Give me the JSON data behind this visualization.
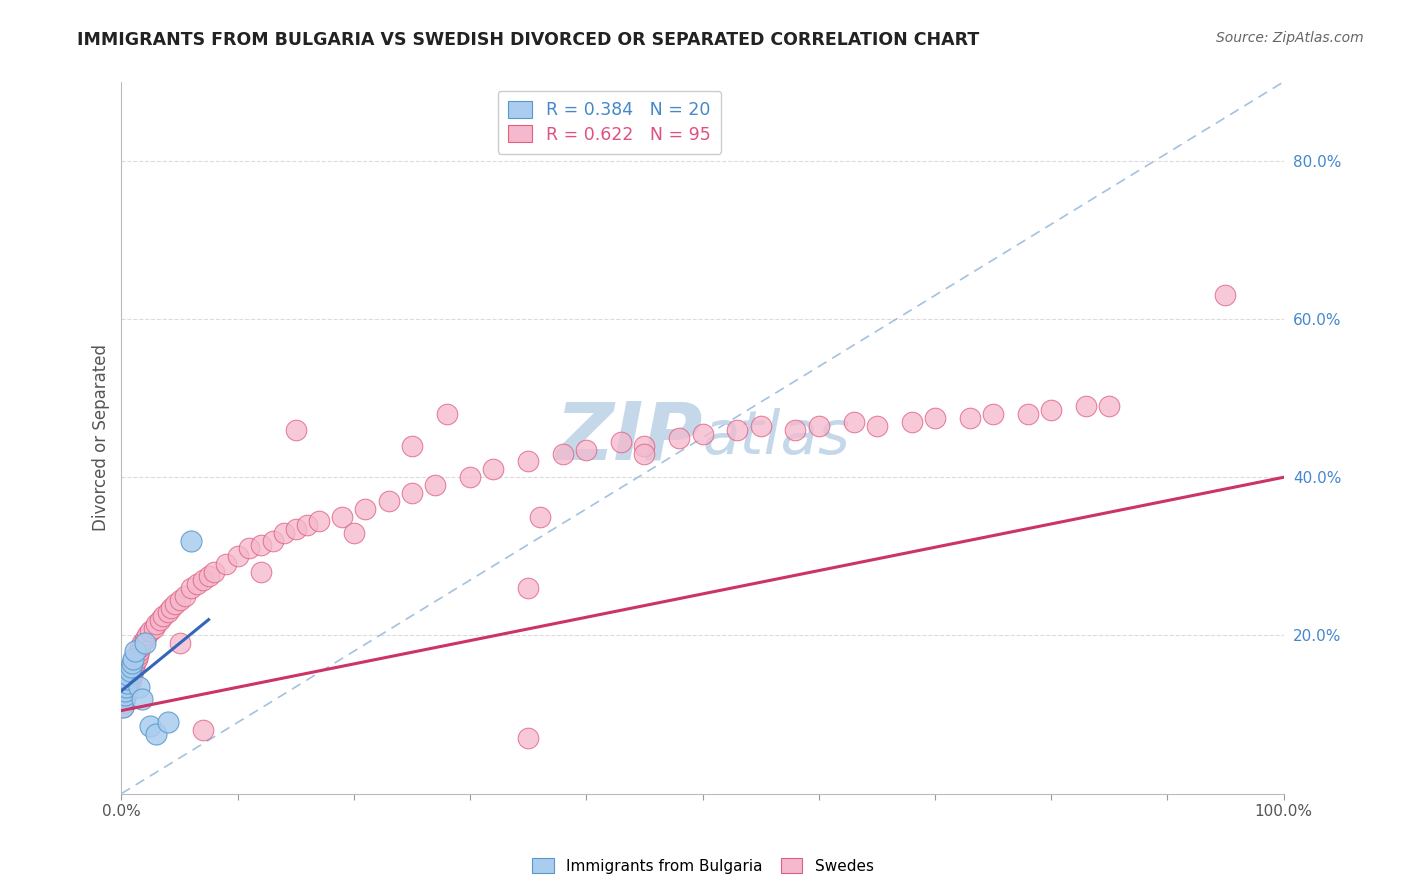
{
  "title": "IMMIGRANTS FROM BULGARIA VS SWEDISH DIVORCED OR SEPARATED CORRELATION CHART",
  "source_text": "Source: ZipAtlas.com",
  "ylabel": "Divorced or Separated",
  "xlim": [
    0.0,
    1.0
  ],
  "ylim": [
    0.0,
    0.9
  ],
  "x_ticks": [
    0.0,
    0.1,
    0.2,
    0.3,
    0.4,
    0.5,
    0.6,
    0.7,
    0.8,
    0.9,
    1.0
  ],
  "y_tick_right_values": [
    0.2,
    0.4,
    0.6,
    0.8
  ],
  "y_tick_right_labels": [
    "20.0%",
    "40.0%",
    "60.0%",
    "80.0%"
  ],
  "legend_r_blue": "R = 0.384",
  "legend_n_blue": "N = 20",
  "legend_r_pink": "R = 0.622",
  "legend_n_pink": "N = 95",
  "legend_label_blue": "Immigrants from Bulgaria",
  "legend_label_pink": "Swedes",
  "blue_scatter_color": "#aaccee",
  "blue_edge_color": "#5599cc",
  "pink_scatter_color": "#f5b8cc",
  "pink_edge_color": "#e06080",
  "blue_line_color": "#3366bb",
  "pink_line_color": "#cc3366",
  "diag_line_color": "#99bbdd",
  "watermark_color": "#c5d8ea",
  "title_color": "#222222",
  "source_color": "#666666",
  "blue_data_x": [
    0.001,
    0.002,
    0.003,
    0.003,
    0.004,
    0.005,
    0.005,
    0.006,
    0.007,
    0.008,
    0.009,
    0.01,
    0.012,
    0.015,
    0.018,
    0.02,
    0.025,
    0.03,
    0.04,
    0.06
  ],
  "blue_data_y": [
    0.11,
    0.12,
    0.125,
    0.13,
    0.135,
    0.14,
    0.145,
    0.15,
    0.155,
    0.16,
    0.165,
    0.17,
    0.18,
    0.135,
    0.12,
    0.19,
    0.085,
    0.075,
    0.09,
    0.32
  ],
  "pink_data_x": [
    0.001,
    0.001,
    0.002,
    0.002,
    0.002,
    0.003,
    0.003,
    0.003,
    0.004,
    0.004,
    0.005,
    0.005,
    0.005,
    0.006,
    0.006,
    0.007,
    0.007,
    0.008,
    0.008,
    0.009,
    0.01,
    0.01,
    0.011,
    0.012,
    0.013,
    0.014,
    0.015,
    0.016,
    0.018,
    0.02,
    0.022,
    0.025,
    0.028,
    0.03,
    0.033,
    0.036,
    0.04,
    0.043,
    0.046,
    0.05,
    0.055,
    0.06,
    0.065,
    0.07,
    0.075,
    0.08,
    0.09,
    0.1,
    0.11,
    0.12,
    0.13,
    0.14,
    0.15,
    0.16,
    0.17,
    0.19,
    0.21,
    0.23,
    0.25,
    0.27,
    0.3,
    0.32,
    0.35,
    0.38,
    0.4,
    0.43,
    0.45,
    0.48,
    0.5,
    0.53,
    0.55,
    0.58,
    0.6,
    0.63,
    0.65,
    0.68,
    0.7,
    0.73,
    0.75,
    0.78,
    0.8,
    0.83,
    0.85,
    0.05,
    0.12,
    0.2,
    0.28,
    0.36,
    0.15,
    0.25,
    0.35,
    0.45,
    0.07,
    0.95,
    0.35
  ],
  "pink_data_y": [
    0.11,
    0.13,
    0.115,
    0.125,
    0.135,
    0.12,
    0.13,
    0.14,
    0.125,
    0.14,
    0.13,
    0.14,
    0.15,
    0.135,
    0.145,
    0.14,
    0.15,
    0.145,
    0.155,
    0.15,
    0.155,
    0.165,
    0.16,
    0.165,
    0.17,
    0.175,
    0.18,
    0.185,
    0.19,
    0.195,
    0.2,
    0.205,
    0.21,
    0.215,
    0.22,
    0.225,
    0.23,
    0.235,
    0.24,
    0.245,
    0.25,
    0.26,
    0.265,
    0.27,
    0.275,
    0.28,
    0.29,
    0.3,
    0.31,
    0.315,
    0.32,
    0.33,
    0.335,
    0.34,
    0.345,
    0.35,
    0.36,
    0.37,
    0.38,
    0.39,
    0.4,
    0.41,
    0.42,
    0.43,
    0.435,
    0.445,
    0.44,
    0.45,
    0.455,
    0.46,
    0.465,
    0.46,
    0.465,
    0.47,
    0.465,
    0.47,
    0.475,
    0.475,
    0.48,
    0.48,
    0.485,
    0.49,
    0.49,
    0.19,
    0.28,
    0.33,
    0.48,
    0.35,
    0.46,
    0.44,
    0.26,
    0.43,
    0.08,
    0.63,
    0.07
  ],
  "pink_trend_x": [
    0.0,
    1.0
  ],
  "pink_trend_y": [
    0.105,
    0.4
  ],
  "blue_trend_x": [
    0.0,
    0.075
  ],
  "blue_trend_y": [
    0.13,
    0.22
  ]
}
